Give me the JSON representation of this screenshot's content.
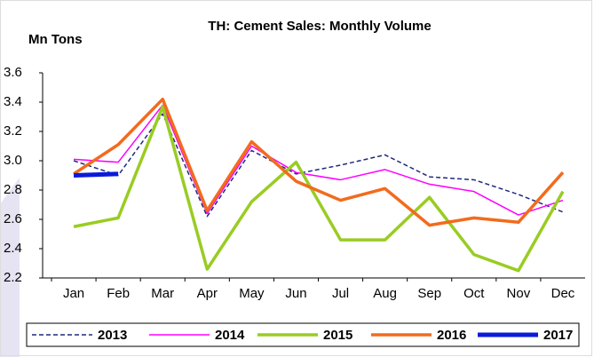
{
  "chart_data": {
    "type": "line",
    "title": "TH: Cement Sales: Monthly Volume",
    "y_label": "Mn Tons",
    "categories": [
      "Jan",
      "Feb",
      "Mar",
      "Apr",
      "May",
      "Jun",
      "Jul",
      "Aug",
      "Sep",
      "Oct",
      "Nov",
      "Dec"
    ],
    "ylim": [
      2.2,
      3.6
    ],
    "yticks": [
      {
        "value": 2.2,
        "label": "2.2"
      },
      {
        "value": 2.4,
        "label": "2.4"
      },
      {
        "value": 2.6,
        "label": "2.6"
      },
      {
        "value": 2.8,
        "label": "2.8"
      },
      {
        "value": 3.0,
        "label": "3.0"
      },
      {
        "value": 3.2,
        "label": "3.2"
      },
      {
        "value": 3.4,
        "label": "3.4"
      },
      {
        "value": 3.6,
        "label": "3.6"
      }
    ],
    "legend": "bottom",
    "series": [
      {
        "name": "2013",
        "color": "#1f2a7a",
        "width": 1.5,
        "dash": true,
        "values": [
          3.0,
          2.9,
          3.32,
          2.62,
          3.07,
          2.91,
          2.97,
          3.04,
          2.89,
          2.87,
          2.77,
          2.65
        ]
      },
      {
        "name": "2014",
        "color": "#ff00ff",
        "width": 1.5,
        "dash": false,
        "values": [
          3.01,
          2.99,
          3.38,
          2.64,
          3.1,
          2.92,
          2.87,
          2.94,
          2.84,
          2.79,
          2.63,
          2.73
        ]
      },
      {
        "name": "2015",
        "color": "#99cc22",
        "width": 3.5,
        "dash": false,
        "values": [
          2.55,
          2.61,
          3.37,
          2.26,
          2.72,
          2.99,
          2.46,
          2.46,
          2.75,
          2.36,
          2.25,
          2.79
        ]
      },
      {
        "name": "2016",
        "color": "#f26b1d",
        "width": 3.5,
        "dash": false,
        "values": [
          2.91,
          3.11,
          3.42,
          2.66,
          3.13,
          2.86,
          2.73,
          2.81,
          2.56,
          2.61,
          2.58,
          2.92
        ]
      },
      {
        "name": "2017",
        "color": "#0a1adb",
        "width": 5,
        "dash": false,
        "values": [
          2.9,
          2.91,
          null,
          null,
          null,
          null,
          null,
          null,
          null,
          null,
          null,
          null
        ]
      }
    ]
  }
}
